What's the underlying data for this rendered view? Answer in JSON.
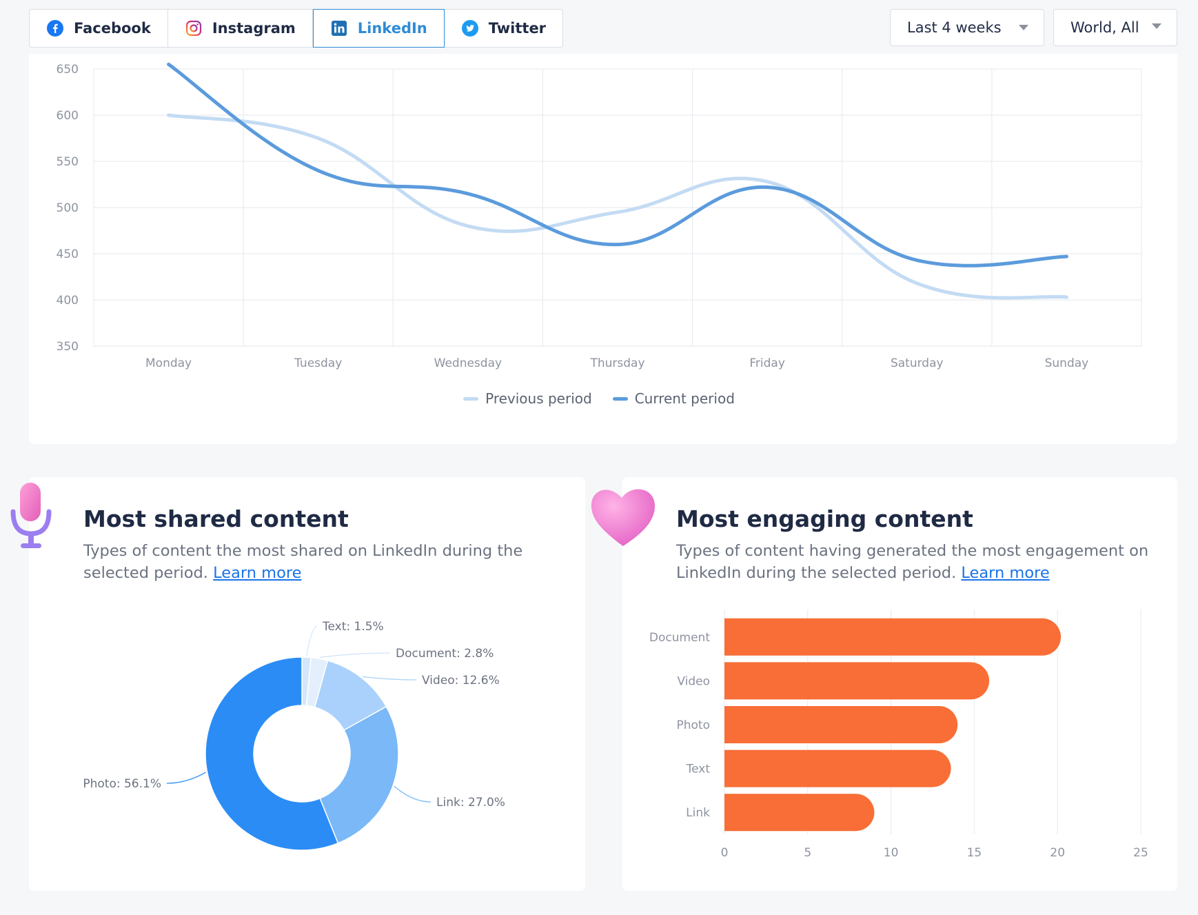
{
  "tabs": [
    {
      "label": "Facebook",
      "icon": "facebook-icon",
      "active": false
    },
    {
      "label": "Instagram",
      "icon": "instagram-icon",
      "active": false
    },
    {
      "label": "LinkedIn",
      "icon": "linkedin-icon",
      "active": true
    },
    {
      "label": "Twitter",
      "icon": "twitter-icon",
      "active": false
    }
  ],
  "filters": {
    "period": "Last 4 weeks",
    "region": "World, All"
  },
  "colors": {
    "accent": "#2f8bd6",
    "previous": "#c3dbf3",
    "current": "#5b9bdc",
    "bar": "#f86e36",
    "pie": [
      "#d4e7fb",
      "#e3effc",
      "#a9d1fb",
      "#7ab8f8",
      "#2b8cf5"
    ]
  },
  "legend": {
    "previous": "Previous period",
    "current": "Current period"
  },
  "shared": {
    "title": "Most shared content",
    "desc": "Types of content the most shared on LinkedIn during the selected period.",
    "link": "Learn more"
  },
  "engaging": {
    "title": "Most engaging content",
    "desc": "Types of content having generated the most engagement on LinkedIn during the selected period.",
    "link": "Learn more"
  },
  "chart_data": [
    {
      "type": "line",
      "x": [
        "Monday",
        "Tuesday",
        "Wednesday",
        "Thursday",
        "Friday",
        "Saturday",
        "Sunday"
      ],
      "series": [
        {
          "name": "Previous period",
          "values": [
            600,
            575,
            480,
            495,
            528,
            418,
            403
          ]
        },
        {
          "name": "Current period",
          "values": [
            655,
            540,
            515,
            460,
            522,
            443,
            447
          ]
        }
      ],
      "yticks": [
        650,
        600,
        550,
        500,
        450,
        400,
        350
      ],
      "ylim": [
        350,
        650
      ],
      "grid": true,
      "legend": "bottom"
    },
    {
      "type": "pie",
      "donut": true,
      "slices": [
        {
          "label": "Text",
          "value": 1.5,
          "text": "Text: 1.5%"
        },
        {
          "label": "Document",
          "value": 2.8,
          "text": "Document: 2.8%"
        },
        {
          "label": "Video",
          "value": 12.6,
          "text": "Video: 12.6%"
        },
        {
          "label": "Link",
          "value": 27.0,
          "text": "Link: 27.0%"
        },
        {
          "label": "Photo",
          "value": 56.1,
          "text": "Photo: 56.1%"
        }
      ]
    },
    {
      "type": "bar",
      "orientation": "horizontal",
      "categories": [
        "Document",
        "Video",
        "Photo",
        "Text",
        "Link"
      ],
      "values": [
        20.2,
        15.9,
        14.0,
        13.6,
        9.0
      ],
      "xticks": [
        0,
        5,
        10,
        15,
        20,
        25
      ],
      "xlim": [
        0,
        25
      ]
    }
  ]
}
